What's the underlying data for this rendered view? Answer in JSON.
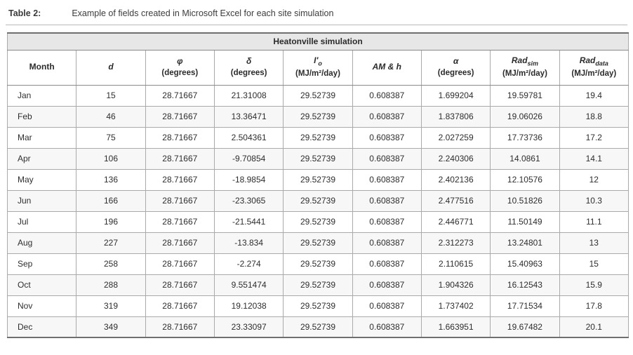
{
  "caption": {
    "label": "Table 2:",
    "text": "Example of fields created in Microsoft Excel for each site simulation"
  },
  "table": {
    "title": "Heatonville simulation",
    "columns": [
      {
        "name": "Month",
        "italic": false,
        "sub": "",
        "unit": ""
      },
      {
        "name": "d",
        "italic": true,
        "sub": "",
        "unit": ""
      },
      {
        "name": "φ",
        "italic": true,
        "sub": "",
        "unit": "(degrees)"
      },
      {
        "name": "δ",
        "italic": true,
        "sub": "",
        "unit": "(degrees)"
      },
      {
        "name": "I′",
        "italic": true,
        "sub": "o",
        "unit": "(MJ/m²/day)"
      },
      {
        "name": "AM & h",
        "italic": true,
        "sub": "",
        "unit": ""
      },
      {
        "name": "α",
        "italic": true,
        "sub": "",
        "unit": "(degrees)"
      },
      {
        "name": "Rad",
        "italic": true,
        "sub": "sim",
        "unit": "(MJ/m²/day)"
      },
      {
        "name": "Rad",
        "italic": true,
        "sub": "data",
        "unit": "(MJ/m²/day)"
      }
    ],
    "rows": [
      [
        "Jan",
        "15",
        "28.71667",
        "21.31008",
        "29.52739",
        "0.608387",
        "1.699204",
        "19.59781",
        "19.4"
      ],
      [
        "Feb",
        "46",
        "28.71667",
        "13.36471",
        "29.52739",
        "0.608387",
        "1.837806",
        "19.06026",
        "18.8"
      ],
      [
        "Mar",
        "75",
        "28.71667",
        "2.504361",
        "29.52739",
        "0.608387",
        "2.027259",
        "17.73736",
        "17.2"
      ],
      [
        "Apr",
        "106",
        "28.71667",
        "-9.70854",
        "29.52739",
        "0.608387",
        "2.240306",
        "14.0861",
        "14.1"
      ],
      [
        "May",
        "136",
        "28.71667",
        "-18.9854",
        "29.52739",
        "0.608387",
        "2.402136",
        "12.10576",
        "12"
      ],
      [
        "Jun",
        "166",
        "28.71667",
        "-23.3065",
        "29.52739",
        "0.608387",
        "2.477516",
        "10.51826",
        "10.3"
      ],
      [
        "Jul",
        "196",
        "28.71667",
        "-21.5441",
        "29.52739",
        "0.608387",
        "2.446771",
        "11.50149",
        "11.1"
      ],
      [
        "Aug",
        "227",
        "28.71667",
        "-13.834",
        "29.52739",
        "0.608387",
        "2.312273",
        "13.24801",
        "13"
      ],
      [
        "Sep",
        "258",
        "28.71667",
        "-2.274",
        "29.52739",
        "0.608387",
        "2.110615",
        "15.40963",
        "15"
      ],
      [
        "Oct",
        "288",
        "28.71667",
        "9.551474",
        "29.52739",
        "0.608387",
        "1.904326",
        "16.12543",
        "15.9"
      ],
      [
        "Nov",
        "319",
        "28.71667",
        "19.12038",
        "29.52739",
        "0.608387",
        "1.737402",
        "17.71534",
        "17.8"
      ],
      [
        "Dec",
        "349",
        "28.71667",
        "23.33097",
        "29.52739",
        "0.608387",
        "1.663951",
        "19.67482",
        "20.1"
      ]
    ]
  },
  "chart_data": {
    "type": "table",
    "title": "Heatonville simulation",
    "columns": [
      "Month",
      "d",
      "φ (degrees)",
      "δ (degrees)",
      "I′o (MJ/m²/day)",
      "AM & h",
      "α (degrees)",
      "Rad_sim (MJ/m²/day)",
      "Rad_data (MJ/m²/day)"
    ],
    "rows": [
      [
        "Jan",
        15,
        28.71667,
        21.31008,
        29.52739,
        0.608387,
        1.699204,
        19.59781,
        19.4
      ],
      [
        "Feb",
        46,
        28.71667,
        13.36471,
        29.52739,
        0.608387,
        1.837806,
        19.06026,
        18.8
      ],
      [
        "Mar",
        75,
        28.71667,
        2.504361,
        29.52739,
        0.608387,
        2.027259,
        17.73736,
        17.2
      ],
      [
        "Apr",
        106,
        28.71667,
        -9.70854,
        29.52739,
        0.608387,
        2.240306,
        14.0861,
        14.1
      ],
      [
        "May",
        136,
        28.71667,
        -18.9854,
        29.52739,
        0.608387,
        2.402136,
        12.10576,
        12
      ],
      [
        "Jun",
        166,
        28.71667,
        -23.3065,
        29.52739,
        0.608387,
        2.477516,
        10.51826,
        10.3
      ],
      [
        "Jul",
        196,
        28.71667,
        -21.5441,
        29.52739,
        0.608387,
        2.446771,
        11.50149,
        11.1
      ],
      [
        "Aug",
        227,
        28.71667,
        -13.834,
        29.52739,
        0.608387,
        2.312273,
        13.24801,
        13
      ],
      [
        "Sep",
        258,
        28.71667,
        -2.274,
        29.52739,
        0.608387,
        2.110615,
        15.40963,
        15
      ],
      [
        "Oct",
        288,
        28.71667,
        9.551474,
        29.52739,
        0.608387,
        1.904326,
        16.12543,
        15.9
      ],
      [
        "Nov",
        319,
        28.71667,
        19.12038,
        29.52739,
        0.608387,
        1.737402,
        17.71534,
        17.8
      ],
      [
        "Dec",
        349,
        28.71667,
        23.33097,
        29.52739,
        0.608387,
        1.663951,
        19.67482,
        20.1
      ]
    ]
  }
}
